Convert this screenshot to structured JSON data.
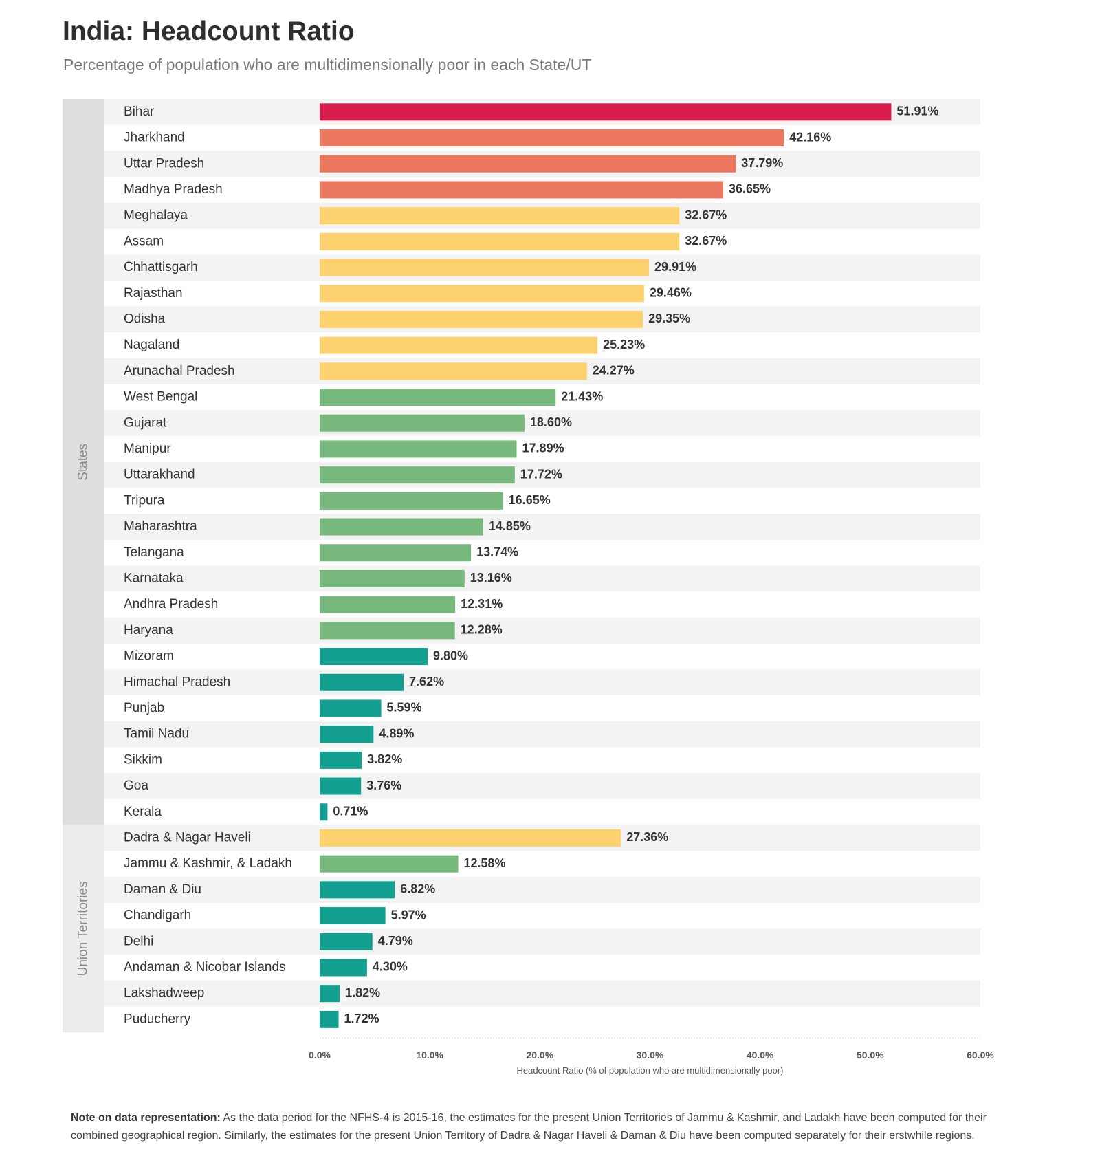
{
  "header": {
    "title": "India: Headcount Ratio",
    "subtitle": "Percentage of population who are multidimensionally poor in each State/UT"
  },
  "note": {
    "heading": "Note on data representation:",
    "text": "As the data period for the NFHS-4 is 2015-16, the estimates for the present Union Territories of Jammu & Kashmir, and Ladakh have been computed for their combined geographical region. Similarly, the estimates for the present Union Territory of Dadra & Nagar Haveli & Daman & Diu have been computed separately for their erstwhile regions."
  },
  "chart_data": {
    "type": "bar",
    "orientation": "horizontal",
    "xlabel": "Headcount Ratio (% of population who are multidimensionally poor)",
    "xlim": [
      0,
      60
    ],
    "xticks": [
      "0.0%",
      "10.0%",
      "20.0%",
      "30.0%",
      "40.0%",
      "50.0%",
      "60.0%"
    ],
    "grid": false,
    "color_bands": {
      "red": "#d81b4a",
      "orange": "#ec7860",
      "yellow": "#fdd26e",
      "green": "#77b97c",
      "teal": "#14a090"
    },
    "groups": [
      {
        "name": "States",
        "items": [
          {
            "label": "Bihar",
            "value": 51.91,
            "display": "51.91%",
            "color": "red"
          },
          {
            "label": "Jharkhand",
            "value": 42.16,
            "display": "42.16%",
            "color": "orange"
          },
          {
            "label": "Uttar Pradesh",
            "value": 37.79,
            "display": "37.79%",
            "color": "orange"
          },
          {
            "label": "Madhya Pradesh",
            "value": 36.65,
            "display": "36.65%",
            "color": "orange"
          },
          {
            "label": "Meghalaya",
            "value": 32.67,
            "display": "32.67%",
            "color": "yellow"
          },
          {
            "label": "Assam",
            "value": 32.67,
            "display": "32.67%",
            "color": "yellow"
          },
          {
            "label": "Chhattisgarh",
            "value": 29.91,
            "display": "29.91%",
            "color": "yellow"
          },
          {
            "label": "Rajasthan",
            "value": 29.46,
            "display": "29.46%",
            "color": "yellow"
          },
          {
            "label": "Odisha",
            "value": 29.35,
            "display": "29.35%",
            "color": "yellow"
          },
          {
            "label": "Nagaland",
            "value": 25.23,
            "display": "25.23%",
            "color": "yellow"
          },
          {
            "label": "Arunachal Pradesh",
            "value": 24.27,
            "display": "24.27%",
            "color": "yellow"
          },
          {
            "label": "West Bengal",
            "value": 21.43,
            "display": "21.43%",
            "color": "green"
          },
          {
            "label": "Gujarat",
            "value": 18.6,
            "display": "18.60%",
            "color": "green"
          },
          {
            "label": "Manipur",
            "value": 17.89,
            "display": "17.89%",
            "color": "green"
          },
          {
            "label": "Uttarakhand",
            "value": 17.72,
            "display": "17.72%",
            "color": "green"
          },
          {
            "label": "Tripura",
            "value": 16.65,
            "display": "16.65%",
            "color": "green"
          },
          {
            "label": "Maharashtra",
            "value": 14.85,
            "display": "14.85%",
            "color": "green"
          },
          {
            "label": "Telangana",
            "value": 13.74,
            "display": "13.74%",
            "color": "green"
          },
          {
            "label": "Karnataka",
            "value": 13.16,
            "display": "13.16%",
            "color": "green"
          },
          {
            "label": "Andhra Pradesh",
            "value": 12.31,
            "display": "12.31%",
            "color": "green"
          },
          {
            "label": "Haryana",
            "value": 12.28,
            "display": "12.28%",
            "color": "green"
          },
          {
            "label": "Mizoram",
            "value": 9.8,
            "display": "9.80%",
            "color": "teal"
          },
          {
            "label": "Himachal Pradesh",
            "value": 7.62,
            "display": "7.62%",
            "color": "teal"
          },
          {
            "label": "Punjab",
            "value": 5.59,
            "display": "5.59%",
            "color": "teal"
          },
          {
            "label": "Tamil Nadu",
            "value": 4.89,
            "display": "4.89%",
            "color": "teal"
          },
          {
            "label": "Sikkim",
            "value": 3.82,
            "display": "3.82%",
            "color": "teal"
          },
          {
            "label": "Goa",
            "value": 3.76,
            "display": "3.76%",
            "color": "teal"
          },
          {
            "label": "Kerala",
            "value": 0.71,
            "display": "0.71%",
            "color": "teal"
          }
        ]
      },
      {
        "name": "Union Territories",
        "items": [
          {
            "label": "Dadra & Nagar Haveli",
            "value": 27.36,
            "display": "27.36%",
            "color": "yellow"
          },
          {
            "label": "Jammu & Kashmir, & Ladakh",
            "value": 12.58,
            "display": "12.58%",
            "color": "green"
          },
          {
            "label": "Daman & Diu",
            "value": 6.82,
            "display": "6.82%",
            "color": "teal"
          },
          {
            "label": "Chandigarh",
            "value": 5.97,
            "display": "5.97%",
            "color": "teal"
          },
          {
            "label": "Delhi",
            "value": 4.79,
            "display": "4.79%",
            "color": "teal"
          },
          {
            "label": "Andaman & Nicobar Islands",
            "value": 4.3,
            "display": "4.30%",
            "color": "teal"
          },
          {
            "label": "Lakshadweep",
            "value": 1.82,
            "display": "1.82%",
            "color": "teal"
          },
          {
            "label": "Puducherry",
            "value": 1.72,
            "display": "1.72%",
            "color": "teal"
          }
        ]
      }
    ]
  }
}
